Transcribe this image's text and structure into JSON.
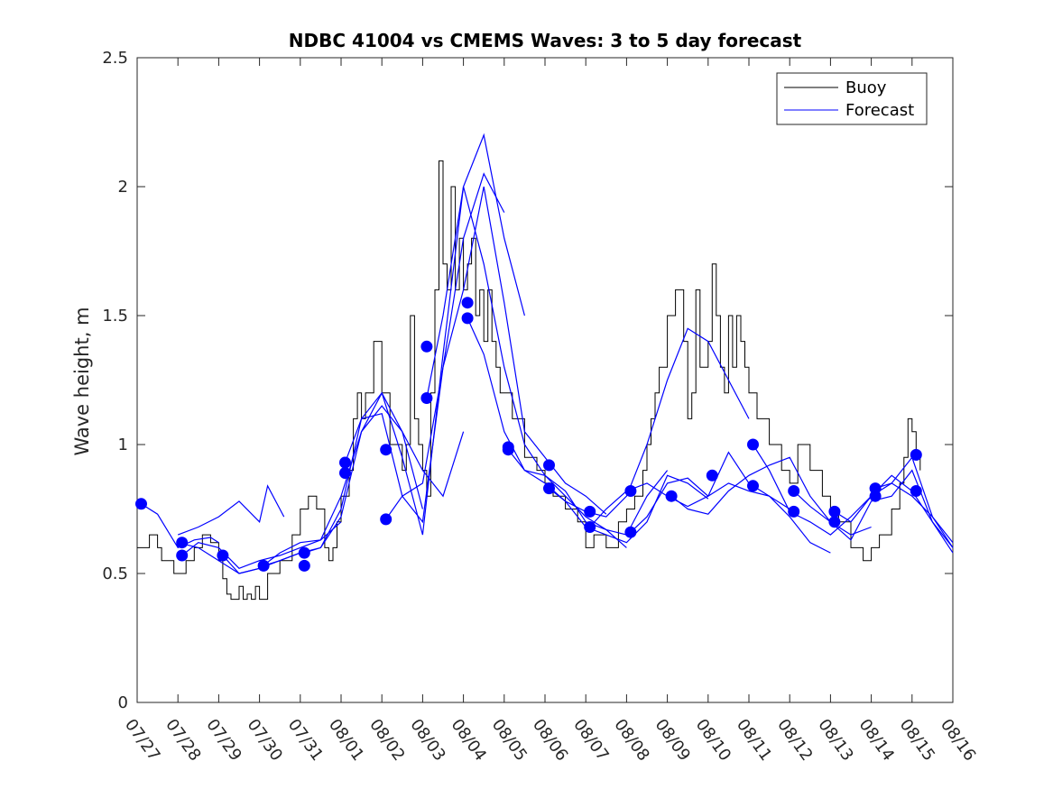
{
  "chart_data": {
    "type": "line",
    "title": "NDBC 41004 vs CMEMS Waves: 3 to 5 day forecast",
    "xlabel": "",
    "ylabel": "Wave height, m",
    "xlim": [
      0,
      20
    ],
    "ylim": [
      0,
      2.5
    ],
    "x_tick_labels": [
      "07/27",
      "07/28",
      "07/29",
      "07/30",
      "07/31",
      "08/01",
      "08/02",
      "08/03",
      "08/04",
      "08/05",
      "08/06",
      "08/07",
      "08/08",
      "08/09",
      "08/10",
      "08/11",
      "08/12",
      "08/13",
      "08/14",
      "08/15",
      "08/16"
    ],
    "y_ticks": [
      0,
      0.5,
      1,
      1.5,
      2,
      2.5
    ],
    "y_tick_labels": [
      "0",
      "0.5",
      "1",
      "1.5",
      "2",
      "2.5"
    ],
    "legend_position": "top-right",
    "colors": {
      "buoy": "#000000",
      "forecast": "#0000ff",
      "axis": "#262626"
    },
    "series": [
      {
        "name": "Buoy",
        "style": "step-line",
        "x": [
          0,
          0.3,
          0.5,
          0.6,
          0.9,
          1.2,
          1.4,
          1.6,
          1.8,
          2.0,
          2.1,
          2.2,
          2.3,
          2.5,
          2.6,
          2.7,
          2.8,
          2.9,
          3.0,
          3.2,
          3.5,
          3.8,
          4.0,
          4.2,
          4.4,
          4.6,
          4.7,
          4.8,
          4.9,
          5.0,
          5.2,
          5.3,
          5.4,
          5.5,
          5.6,
          5.8,
          6.0,
          6.2,
          6.5,
          6.6,
          6.7,
          6.8,
          6.9,
          7.0,
          7.1,
          7.2,
          7.3,
          7.4,
          7.5,
          7.6,
          7.7,
          7.8,
          7.9,
          8.0,
          8.1,
          8.2,
          8.3,
          8.4,
          8.5,
          8.6,
          8.7,
          8.8,
          8.9,
          9.0,
          9.2,
          9.5,
          9.8,
          10.0,
          10.2,
          10.5,
          10.8,
          11.0,
          11.2,
          11.5,
          11.8,
          12.0,
          12.2,
          12.4,
          12.5,
          12.6,
          12.7,
          12.8,
          13.0,
          13.2,
          13.4,
          13.5,
          13.6,
          13.7,
          13.8,
          14.0,
          14.1,
          14.2,
          14.3,
          14.4,
          14.5,
          14.6,
          14.7,
          14.8,
          14.9,
          15.0,
          15.2,
          15.5,
          15.8,
          16.0,
          16.2,
          16.5,
          16.8,
          17.0,
          17.2,
          17.5,
          17.8,
          18.0,
          18.2,
          18.5,
          18.7,
          18.8,
          18.9,
          19.0,
          19.1,
          19.2
        ],
        "values": [
          0.6,
          0.65,
          0.6,
          0.55,
          0.5,
          0.55,
          0.6,
          0.65,
          0.62,
          0.55,
          0.48,
          0.42,
          0.4,
          0.45,
          0.4,
          0.42,
          0.4,
          0.45,
          0.4,
          0.5,
          0.55,
          0.65,
          0.75,
          0.8,
          0.75,
          0.6,
          0.55,
          0.6,
          0.7,
          0.8,
          0.9,
          1.1,
          1.2,
          1.1,
          1.2,
          1.4,
          1.2,
          1.0,
          0.9,
          1.0,
          1.5,
          1.1,
          1.0,
          0.9,
          0.8,
          1.2,
          1.6,
          2.1,
          1.7,
          1.6,
          2.0,
          1.6,
          1.8,
          1.6,
          1.7,
          1.8,
          1.5,
          1.6,
          1.4,
          1.6,
          1.4,
          1.3,
          1.2,
          1.2,
          1.1,
          0.95,
          0.9,
          0.85,
          0.8,
          0.75,
          0.7,
          0.6,
          0.65,
          0.6,
          0.7,
          0.75,
          0.8,
          0.9,
          1.0,
          1.1,
          1.2,
          1.3,
          1.5,
          1.6,
          1.4,
          1.1,
          1.2,
          1.6,
          1.3,
          1.4,
          1.7,
          1.5,
          1.3,
          1.2,
          1.5,
          1.3,
          1.5,
          1.4,
          1.3,
          1.2,
          1.1,
          1.0,
          0.9,
          0.85,
          1.0,
          0.9,
          0.8,
          0.75,
          0.7,
          0.6,
          0.55,
          0.6,
          0.65,
          0.75,
          0.85,
          0.95,
          1.1,
          1.05,
          0.95,
          0.9
        ]
      },
      {
        "name": "Forecast",
        "style": "lines-with-markers",
        "segments": [
          {
            "x": [
              0.1,
              0.5,
              1.0,
              1.4,
              1.8,
              2.0
            ],
            "values": [
              0.77,
              0.73,
              0.6,
              0.63,
              0.64,
              0.62
            ]
          },
          {
            "x": [
              1.0,
              1.5,
              2.0,
              2.5,
              3.0,
              3.2,
              3.6
            ],
            "values": [
              0.65,
              0.68,
              0.72,
              0.78,
              0.7,
              0.84,
              0.72
            ]
          },
          {
            "x": [
              1.0,
              1.5,
              2.0,
              2.5,
              3.0,
              3.5,
              4.0
            ],
            "values": [
              0.62,
              0.6,
              0.55,
              0.5,
              0.52,
              0.55,
              0.58
            ]
          },
          {
            "x": [
              1.1,
              1.5,
              2.0,
              2.5,
              3.0,
              3.5,
              4.0,
              4.5,
              5.0
            ],
            "values": [
              0.57,
              0.62,
              0.6,
              0.52,
              0.55,
              0.57,
              0.6,
              0.63,
              0.7
            ]
          },
          {
            "x": [
              2.1,
              2.5,
              3.0,
              3.5,
              4.0,
              4.5,
              5.0,
              5.5,
              6.0,
              6.5,
              7.0
            ],
            "values": [
              0.57,
              0.5,
              0.52,
              0.58,
              0.62,
              0.63,
              0.8,
              1.05,
              1.2,
              1.05,
              0.75
            ]
          },
          {
            "x": [
              3.1,
              3.5,
              4.0,
              4.5,
              5.0,
              5.5,
              6.0,
              6.5,
              7.0,
              7.5,
              8.0
            ],
            "values": [
              0.53,
              0.55,
              0.58,
              0.6,
              0.72,
              1.05,
              1.15,
              1.05,
              0.9,
              0.8,
              1.05
            ]
          },
          {
            "x": [
              4.1,
              4.5,
              5.0,
              5.5,
              6.0,
              6.5,
              7.0,
              7.5,
              8.0,
              8.5,
              9.0
            ],
            "values": [
              0.58,
              0.6,
              0.75,
              1.1,
              1.12,
              0.8,
              0.7,
              1.3,
              1.8,
              2.05,
              1.9
            ]
          },
          {
            "x": [
              5.1,
              5.5,
              6.0,
              6.5,
              7.0,
              7.5,
              8.0,
              8.5,
              9.0,
              9.5
            ],
            "values": [
              0.93,
              1.1,
              1.2,
              0.95,
              0.65,
              1.35,
              2.0,
              2.2,
              1.8,
              1.5
            ]
          },
          {
            "x": [
              6.1,
              6.5,
              7.0,
              7.5,
              8.0,
              8.5,
              9.0,
              9.5,
              10.0,
              10.5,
              11.0,
              11.5
            ],
            "values": [
              0.71,
              0.8,
              0.85,
              1.3,
              1.6,
              2.0,
              1.55,
              1.05,
              0.95,
              0.85,
              0.8,
              0.73
            ]
          },
          {
            "x": [
              7.1,
              7.5,
              8.0,
              8.5,
              9.0,
              9.5,
              10.0,
              10.5,
              11.0,
              11.5,
              12.0
            ],
            "values": [
              1.18,
              1.5,
              2.0,
              1.7,
              1.3,
              1.0,
              0.88,
              0.8,
              0.72,
              0.67,
              0.6
            ]
          },
          {
            "x": [
              8.1,
              8.5,
              9.0,
              9.5,
              10.0,
              10.5,
              11.0,
              11.5,
              12.0,
              12.5,
              13.0
            ],
            "values": [
              1.49,
              1.35,
              1.05,
              0.9,
              0.88,
              0.82,
              0.7,
              0.67,
              0.65,
              0.8,
              0.9
            ]
          },
          {
            "x": [
              9.1,
              9.5,
              10.0,
              10.5,
              11.0,
              11.5,
              12.0,
              12.5,
              13.0,
              13.5,
              14.0
            ],
            "values": [
              0.98,
              0.9,
              0.85,
              0.78,
              0.68,
              0.65,
              0.62,
              0.7,
              0.88,
              0.85,
              0.79
            ]
          },
          {
            "x": [
              10.1,
              10.5,
              11.0,
              11.5,
              12.0,
              12.5,
              13.0,
              13.5,
              14.0,
              14.5,
              15.0
            ],
            "values": [
              0.83,
              0.78,
              0.74,
              0.72,
              0.8,
              1.0,
              1.25,
              1.45,
              1.4,
              1.25,
              1.1
            ]
          },
          {
            "x": [
              11.1,
              11.5,
              12.0,
              12.5,
              13.0,
              13.5,
              14.0,
              14.5,
              15.0,
              15.5,
              16.0
            ],
            "values": [
              0.68,
              0.75,
              0.82,
              0.85,
              0.8,
              0.76,
              0.8,
              0.97,
              0.85,
              0.8,
              0.75
            ]
          },
          {
            "x": [
              12.1,
              12.5,
              13.0,
              13.5,
              14.0,
              14.5,
              15.0,
              15.5,
              16.0,
              16.5,
              17.0
            ],
            "values": [
              0.66,
              0.72,
              0.85,
              0.87,
              0.8,
              0.85,
              0.82,
              0.8,
              0.72,
              0.62,
              0.58
            ]
          },
          {
            "x": [
              13.1,
              13.5,
              14.0,
              14.5,
              15.0,
              15.5,
              16.0,
              16.5,
              17.0,
              17.5,
              18.0
            ],
            "values": [
              0.8,
              0.75,
              0.73,
              0.82,
              0.88,
              0.92,
              0.95,
              0.8,
              0.7,
              0.65,
              0.68
            ]
          },
          {
            "x": [
              15.1,
              15.5,
              16.0,
              16.5,
              17.0,
              17.5,
              18.0,
              18.5,
              19.0,
              19.5,
              20.0
            ],
            "values": [
              1.0,
              0.9,
              0.74,
              0.7,
              0.65,
              0.72,
              0.8,
              0.85,
              0.95,
              0.72,
              0.6
            ]
          },
          {
            "x": [
              16.1,
              16.5,
              17.0,
              17.5,
              18.0,
              18.5,
              19.0,
              19.5,
              20.0
            ],
            "values": [
              0.82,
              0.76,
              0.7,
              0.63,
              0.78,
              0.8,
              0.9,
              0.7,
              0.58
            ]
          },
          {
            "x": [
              17.1,
              17.5,
              18.0,
              18.5,
              19.0,
              19.5,
              20.0
            ],
            "values": [
              0.74,
              0.7,
              0.8,
              0.88,
              0.82,
              0.7,
              0.6
            ]
          },
          {
            "x": [
              18.1,
              18.5,
              19.0,
              19.5,
              20.0
            ],
            "values": [
              0.83,
              0.85,
              0.8,
              0.72,
              0.62
            ]
          }
        ],
        "markers": {
          "x": [
            0.1,
            1.1,
            1.1,
            2.1,
            3.1,
            4.1,
            4.1,
            5.1,
            5.1,
            6.1,
            6.1,
            7.1,
            7.1,
            8.1,
            8.1,
            9.1,
            9.1,
            10.1,
            10.1,
            11.1,
            11.1,
            12.1,
            12.1,
            13.1,
            14.1,
            15.1,
            15.1,
            16.1,
            16.1,
            17.1,
            17.1,
            18.1,
            18.1,
            19.1,
            19.1
          ],
          "values": [
            0.77,
            0.62,
            0.57,
            0.57,
            0.53,
            0.58,
            0.53,
            0.93,
            0.89,
            0.98,
            0.71,
            1.38,
            1.18,
            1.55,
            1.49,
            0.99,
            0.98,
            0.92,
            0.83,
            0.74,
            0.68,
            0.82,
            0.66,
            0.8,
            0.88,
            1.0,
            0.84,
            0.82,
            0.74,
            0.74,
            0.7,
            0.83,
            0.8,
            0.96,
            0.82
          ]
        }
      }
    ]
  }
}
